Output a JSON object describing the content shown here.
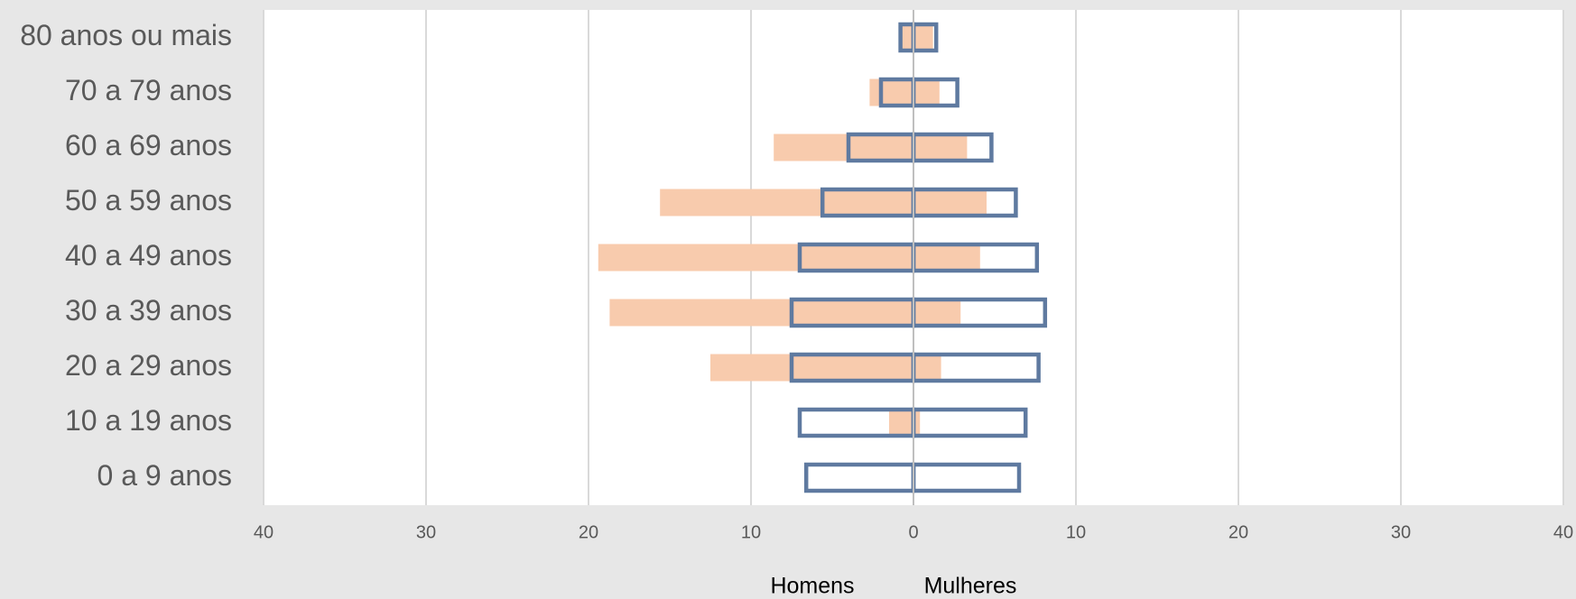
{
  "chart_data": {
    "type": "pyramid",
    "categories": [
      "0 a 9 anos",
      "10 a 19 anos",
      "20 a 29 anos",
      "30 a 39 anos",
      "40 a 49 anos",
      "50 a 59 anos",
      "60 a 69 anos",
      "70 a 79 anos",
      "80 anos ou mais"
    ],
    "series": [
      {
        "color": "#f8cbad",
        "fill": true,
        "values": [
          0,
          -1.5,
          -12.5,
          -18.7,
          -19.4,
          -15.6,
          -8.6,
          -2.7,
          -0.7
        ]
      },
      {
        "color": "#f8cbad",
        "fill": true,
        "values": [
          0,
          0.4,
          1.7,
          2.9,
          4.1,
          4.5,
          3.3,
          1.6,
          1.2
        ]
      },
      {
        "color": "#5f7aa0",
        "fill": false,
        "values": [
          -6.6,
          -7.0,
          -7.5,
          -7.5,
          -7.0,
          -5.6,
          -4.0,
          -2.0,
          -0.8
        ]
      },
      {
        "color": "#5f7aa0",
        "fill": false,
        "values": [
          6.5,
          6.9,
          7.7,
          8.1,
          7.6,
          6.3,
          4.8,
          2.7,
          1.4
        ]
      }
    ],
    "axis_labels": [
      "Homens",
      "Mulheres"
    ],
    "xlim": [
      -40,
      40
    ],
    "xticks": [
      {
        "value": -40,
        "label": "40"
      },
      {
        "value": -30,
        "label": "30"
      },
      {
        "value": -20,
        "label": "20"
      },
      {
        "value": -10,
        "label": "10"
      },
      0,
      10,
      20,
      30,
      40
    ],
    "grid": true
  }
}
